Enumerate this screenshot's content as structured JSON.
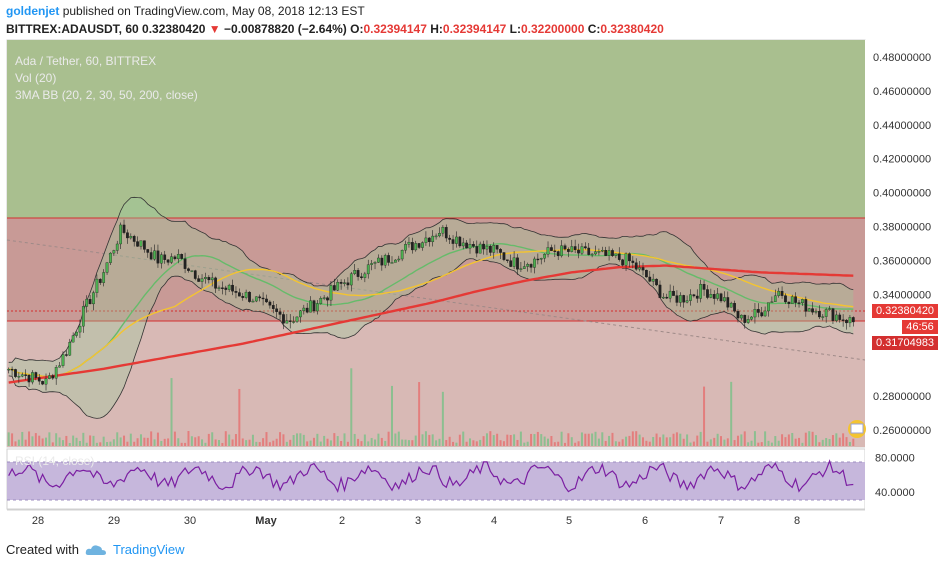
{
  "header": {
    "author": "goldenjet",
    "published": "published on TradingView.com, May 08, 2018 12:13 EST",
    "symbol": "BITTREX:ADAUSDT, 60",
    "last": "0.32380420",
    "change": "−0.00878820 (−2.64%)",
    "open_label": "O:",
    "open": "0.32394147",
    "high_label": "H:",
    "high": "0.32394147",
    "low_label": "L:",
    "low": "0.32200000",
    "close_label": "C:",
    "close": "0.32380420"
  },
  "overlay": {
    "title": "Ada / Tether, 60, BITTREX",
    "vol": "Vol (20)",
    "bb": "3MA BB (20, 2, 30, 50, 200, close)",
    "rsi": "RSI (14, close)"
  },
  "price_axis": [
    "0.48000000",
    "0.46000000",
    "0.44000000",
    "0.42000000",
    "0.40000000",
    "0.38000000",
    "0.36000000",
    "0.34000000",
    "0.28000000",
    "0.26000000"
  ],
  "price_labels": {
    "current": "0.32380420",
    "countdown": "46:56",
    "line": "0.31704983"
  },
  "rsi_axis": [
    "80.0000",
    "40.0000"
  ],
  "time_axis": [
    "28",
    "29",
    "30",
    "May",
    "2",
    "3",
    "4",
    "5",
    "6",
    "7",
    "8"
  ],
  "footer": {
    "created": "Created with",
    "brand": "TradingView"
  },
  "colors": {
    "green_zone": "#a9bf8f",
    "red_zone": "#c89a96",
    "candle_up": "#26a69a",
    "candle_down": "#ef5350",
    "ma200": "#e53935",
    "ma50": "#f4c430",
    "ma30": "#66bb6a",
    "rsi_line": "#7b1fa2",
    "rsi_band": "#b9a7d4"
  },
  "chart_data": {
    "type": "candlestick",
    "symbol": "ADAUSDT",
    "ylim": [
      0.25,
      0.49
    ],
    "x": [
      "28",
      "29",
      "30",
      "May",
      "2",
      "3",
      "4",
      "5",
      "6",
      "7",
      "8"
    ],
    "close_path": [
      0.296,
      0.292,
      0.288,
      0.305,
      0.33,
      0.352,
      0.378,
      0.37,
      0.36,
      0.362,
      0.352,
      0.345,
      0.342,
      0.338,
      0.33,
      0.325,
      0.332,
      0.34,
      0.348,
      0.355,
      0.36,
      0.366,
      0.372,
      0.378,
      0.372,
      0.368,
      0.365,
      0.358,
      0.36,
      0.366,
      0.365,
      0.364,
      0.362,
      0.36,
      0.35,
      0.338,
      0.338,
      0.343,
      0.338,
      0.325,
      0.329,
      0.342,
      0.335,
      0.331,
      0.328,
      0.3238
    ],
    "ma200_path": [
      0.288,
      0.292,
      0.296,
      0.301,
      0.306,
      0.311,
      0.317,
      0.323,
      0.329,
      0.335,
      0.342,
      0.348,
      0.353,
      0.356,
      0.357,
      0.355,
      0.353,
      0.352,
      0.351
    ],
    "rsi_range": [
      40,
      80
    ]
  }
}
